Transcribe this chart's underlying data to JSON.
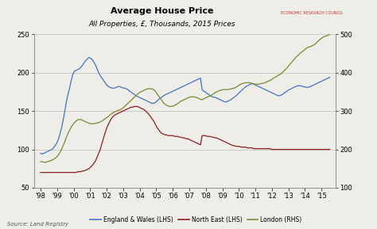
{
  "title": "Average House Price",
  "subtitle": "All Properties, £, Thousands, 2015 Prices",
  "source": "Source: Land Registry",
  "lhs_ylim": [
    50,
    250
  ],
  "rhs_ylim": [
    100,
    500
  ],
  "lhs_yticks": [
    50,
    100,
    150,
    200,
    250
  ],
  "rhs_yticks": [
    100,
    200,
    300,
    400,
    500
  ],
  "xtick_labels": [
    "'98",
    "'99",
    "'00",
    "'01",
    "'02",
    "'03",
    "'04",
    "'05",
    "'06",
    "'07",
    "'08",
    "'09",
    "'10",
    "'11",
    "'12",
    "'13",
    "'14",
    "'15"
  ],
  "england_wales_color": "#4472c4",
  "north_east_color": "#8b2020",
  "london_color": "#7a8a2e",
  "bg_color": "#eeede8",
  "grid_color": "#bbbbbb",
  "erc_color": "#cc3333",
  "england_wales": [
    95,
    94,
    95,
    96,
    97,
    98,
    99,
    100,
    102,
    105,
    108,
    113,
    120,
    128,
    138,
    150,
    162,
    172,
    180,
    190,
    198,
    202,
    203,
    204,
    205,
    207,
    210,
    213,
    216,
    218,
    220,
    219,
    217,
    214,
    210,
    205,
    200,
    196,
    193,
    190,
    187,
    184,
    182,
    181,
    180,
    180,
    180,
    181,
    182,
    182,
    181,
    180,
    180,
    179,
    178,
    176,
    175,
    173,
    172,
    170,
    169,
    168,
    167,
    166,
    165,
    164,
    163,
    162,
    161,
    160,
    160,
    161,
    163,
    165,
    167,
    168,
    170,
    171,
    172,
    173,
    174,
    175,
    176,
    177,
    178,
    179,
    180,
    181,
    182,
    183,
    184,
    185,
    186,
    187,
    188,
    189,
    190,
    191,
    192,
    193,
    178,
    176,
    175,
    173,
    172,
    170,
    169,
    168,
    168,
    167,
    166,
    165,
    164,
    163,
    162,
    162,
    163,
    164,
    165,
    167,
    168,
    170,
    172,
    174,
    176,
    178,
    180,
    182,
    183,
    184,
    185,
    186,
    185,
    184,
    183,
    182,
    181,
    180,
    179,
    178,
    177,
    176,
    175,
    174,
    173,
    172,
    171,
    170,
    170,
    171,
    172,
    174,
    175,
    177,
    178,
    179,
    180,
    181,
    182,
    183,
    183,
    183,
    182,
    182,
    181,
    181,
    181,
    182,
    183,
    184,
    185,
    186,
    187,
    188,
    189,
    190,
    191,
    192,
    193,
    194
  ],
  "north_east": [
    70,
    70,
    70,
    70,
    70,
    70,
    70,
    70,
    70,
    70,
    70,
    70,
    70,
    70,
    70,
    70,
    70,
    70,
    70,
    70,
    70,
    70,
    70,
    71,
    71,
    71,
    72,
    72,
    73,
    74,
    75,
    77,
    79,
    82,
    85,
    90,
    95,
    100,
    108,
    115,
    122,
    128,
    133,
    137,
    141,
    143,
    145,
    146,
    147,
    148,
    149,
    150,
    151,
    152,
    153,
    154,
    155,
    155,
    156,
    156,
    156,
    155,
    154,
    153,
    152,
    150,
    148,
    146,
    143,
    140,
    137,
    133,
    129,
    126,
    123,
    121,
    120,
    119,
    119,
    118,
    118,
    118,
    118,
    117,
    117,
    117,
    116,
    116,
    115,
    115,
    114,
    114,
    113,
    112,
    111,
    110,
    109,
    108,
    107,
    106,
    118,
    118,
    118,
    117,
    117,
    117,
    116,
    116,
    115,
    115,
    114,
    113,
    112,
    111,
    110,
    109,
    108,
    107,
    106,
    105,
    105,
    104,
    104,
    104,
    103,
    103,
    103,
    103,
    102,
    102,
    102,
    102,
    101,
    101,
    101,
    101,
    101,
    101,
    101,
    101,
    101,
    101,
    101,
    100,
    100,
    100,
    100,
    100,
    100,
    100,
    100,
    100,
    100,
    100,
    100,
    100,
    100,
    100,
    100,
    100,
    100,
    100,
    100,
    100,
    100,
    100,
    100,
    100,
    100,
    100,
    100,
    100,
    100,
    100,
    100,
    100,
    100,
    100,
    100,
    100
  ],
  "london": [
    168,
    168,
    167,
    166,
    168,
    169,
    170,
    172,
    174,
    177,
    180,
    185,
    192,
    200,
    210,
    220,
    232,
    242,
    250,
    258,
    265,
    270,
    274,
    277,
    278,
    278,
    276,
    274,
    272,
    270,
    268,
    267,
    267,
    267,
    268,
    269,
    270,
    272,
    274,
    277,
    280,
    283,
    286,
    290,
    293,
    296,
    298,
    300,
    302,
    303,
    305,
    308,
    312,
    316,
    320,
    324,
    328,
    332,
    336,
    340,
    344,
    348,
    350,
    352,
    354,
    356,
    358,
    358,
    358,
    358,
    356,
    352,
    346,
    340,
    334,
    328,
    322,
    318,
    315,
    313,
    312,
    312,
    313,
    315,
    317,
    320,
    323,
    326,
    328,
    330,
    332,
    334,
    336,
    337,
    337,
    337,
    336,
    335,
    333,
    330,
    330,
    332,
    334,
    336,
    338,
    340,
    342,
    345,
    348,
    350,
    352,
    354,
    355,
    356,
    356,
    356,
    356,
    357,
    358,
    359,
    360,
    362,
    365,
    368,
    370,
    372,
    373,
    374,
    374,
    374,
    373,
    372,
    371,
    370,
    370,
    370,
    371,
    372,
    373,
    374,
    376,
    378,
    380,
    382,
    385,
    388,
    390,
    393,
    395,
    398,
    402,
    406,
    410,
    415,
    420,
    425,
    430,
    435,
    440,
    444,
    448,
    452,
    455,
    458,
    462,
    465,
    467,
    468,
    470,
    472,
    475,
    479,
    483,
    487,
    490,
    493,
    495,
    496,
    498,
    500
  ],
  "n_months": 180
}
